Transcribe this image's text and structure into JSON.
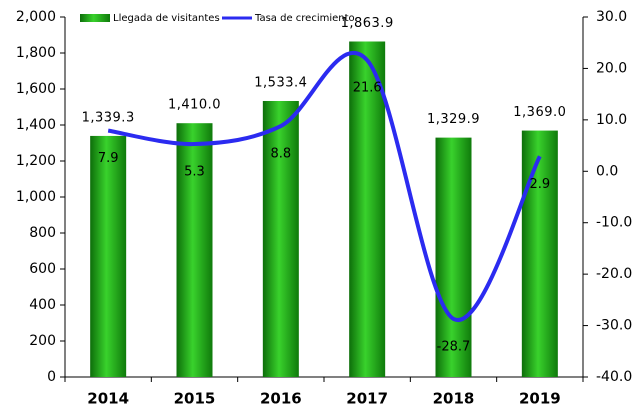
{
  "chart_data": {
    "type": "bar_line",
    "categories": [
      "2014",
      "2015",
      "2016",
      "2017",
      "2018",
      "2019"
    ],
    "series": [
      {
        "name": "Llegada de visitantes",
        "color": "#22a81c",
        "type": "bar",
        "values": [
          1339.3,
          1410.0,
          1533.4,
          1863.9,
          1329.9,
          1369.0
        ],
        "value_labels": [
          "1,339.3",
          "1,410.0",
          "1,533.4",
          "1,863.9",
          "1,329.9",
          "1,369.0"
        ]
      },
      {
        "name": "Tasa de crecimiento",
        "color": "#2b2bf0",
        "type": "line",
        "axis": "y2",
        "values": [
          7.9,
          5.3,
          8.8,
          21.6,
          -28.7,
          2.9
        ]
      }
    ],
    "ylim": [
      0,
      2000
    ],
    "yticks": [
      0,
      200,
      400,
      600,
      800,
      {
        "value": 1000,
        "label": "1,000"
      },
      {
        "value": 1200,
        "label": "1,200"
      },
      {
        "value": 1400,
        "label": "1,400"
      },
      {
        "value": 1600,
        "label": "1,600"
      },
      {
        "value": 1800,
        "label": "1,800"
      },
      {
        "value": 2000,
        "label": "2,000"
      }
    ],
    "y2lim": [
      -40,
      30
    ],
    "y2ticks": [
      {
        "value": -40,
        "label": "-40.0"
      },
      {
        "value": -30,
        "label": "-30.0"
      },
      {
        "value": -20,
        "label": "-20.0"
      },
      {
        "value": -10,
        "label": "-10.0"
      },
      {
        "value": 0,
        "label": "0.0"
      },
      {
        "value": 10,
        "label": "10.0"
      },
      {
        "value": 20,
        "label": "20.0"
      },
      {
        "value": 30,
        "label": "30.0"
      }
    ]
  }
}
